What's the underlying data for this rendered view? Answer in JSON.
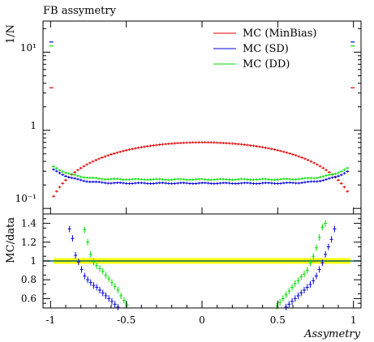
{
  "chart_data": [
    {
      "type": "scatter",
      "title": "FB assymetry",
      "ylabel": "1/N",
      "yscale": "log",
      "ylim": [
        0.085,
        25
      ],
      "xlim": [
        -1.05,
        1.05
      ],
      "ytick_labels": [
        "10⁻¹",
        "1",
        "10¹"
      ],
      "legend": {
        "position": "top-right",
        "entries": [
          "MC (MinBias)",
          "MC (SD)",
          "MC (DD)"
        ]
      },
      "series": [
        {
          "name": "MC (MinBias)",
          "color": "#e00000",
          "shape": "parabola",
          "center": 0.7,
          "edge": 0.12,
          "outlier_x": [
            -0.995,
            0.995
          ],
          "outlier_y": [
            3.5,
            3.5
          ]
        },
        {
          "name": "MC (SD)",
          "color": "#0000dd",
          "shape": "bathtub",
          "center": 0.21,
          "edge": 0.33,
          "outlier_x": [
            -0.995,
            0.995
          ],
          "outlier_y": [
            13.5,
            13.5
          ]
        },
        {
          "name": "MC (DD)",
          "color": "#00dd00",
          "shape": "bathtub",
          "center": 0.235,
          "edge": 0.36,
          "outlier_x": [
            -0.995,
            0.995
          ],
          "outlier_y": [
            12.0,
            12.0
          ]
        }
      ]
    },
    {
      "type": "scatter",
      "ylabel": "MC/data",
      "xlabel": "Assymetry",
      "ylim": [
        0.5,
        1.5
      ],
      "xlim": [
        -1.05,
        1.05
      ],
      "x_ticks": [
        -1,
        -0.5,
        0,
        0.5,
        1
      ],
      "x_tick_labels": [
        "-1",
        "-0.5",
        "0",
        "0.5",
        "1"
      ],
      "y_ticks": [
        0.6,
        0.8,
        1,
        1.2,
        1.4
      ],
      "y_tick_labels": [
        "0.6",
        "0.8",
        "1",
        "1.2",
        "1.4"
      ],
      "reference_line": 1,
      "band": {
        "x": [
          -0.98,
          0.98
        ],
        "y": [
          0.97,
          1.03
        ],
        "color": "#ffff00"
      },
      "reference_color": "#006666",
      "series": [
        {
          "name": "MC (SD)",
          "color": "#0000dd",
          "x": [
            -0.875,
            -0.855,
            -0.835,
            -0.815,
            -0.795,
            -0.775,
            -0.755,
            -0.735,
            -0.715,
            -0.695,
            -0.675,
            -0.655,
            -0.635,
            -0.615,
            -0.595,
            -0.575,
            -0.555,
            0.555,
            0.575,
            0.595,
            0.615,
            0.635,
            0.655,
            0.675,
            0.695,
            0.715,
            0.735,
            0.755,
            0.775,
            0.795,
            0.815,
            0.835,
            0.855,
            0.875
          ],
          "y": [
            1.34,
            1.24,
            1.06,
            0.99,
            0.91,
            0.84,
            0.8,
            0.77,
            0.74,
            0.72,
            0.69,
            0.66,
            0.63,
            0.6,
            0.57,
            0.54,
            0.51,
            0.51,
            0.54,
            0.57,
            0.6,
            0.63,
            0.66,
            0.69,
            0.72,
            0.75,
            0.79,
            0.84,
            0.91,
            0.98,
            1.07,
            1.15,
            1.23,
            1.34
          ]
        },
        {
          "name": "MC (DD)",
          "color": "#00dd00",
          "x": [
            -0.775,
            -0.755,
            -0.735,
            -0.715,
            -0.695,
            -0.675,
            -0.655,
            -0.635,
            -0.615,
            -0.595,
            -0.575,
            -0.555,
            -0.535,
            -0.515,
            -0.495,
            0.495,
            0.515,
            0.535,
            0.555,
            0.575,
            0.595,
            0.615,
            0.635,
            0.655,
            0.675,
            0.695,
            0.715,
            0.735,
            0.755,
            0.775,
            0.795,
            0.815
          ],
          "y": [
            1.33,
            1.2,
            1.07,
            0.99,
            0.95,
            0.92,
            0.89,
            0.85,
            0.81,
            0.77,
            0.73,
            0.69,
            0.63,
            0.58,
            0.53,
            0.52,
            0.56,
            0.6,
            0.64,
            0.68,
            0.72,
            0.76,
            0.79,
            0.83,
            0.86,
            0.9,
            0.98,
            1.05,
            1.14,
            1.25,
            1.36,
            1.4
          ]
        }
      ]
    }
  ]
}
